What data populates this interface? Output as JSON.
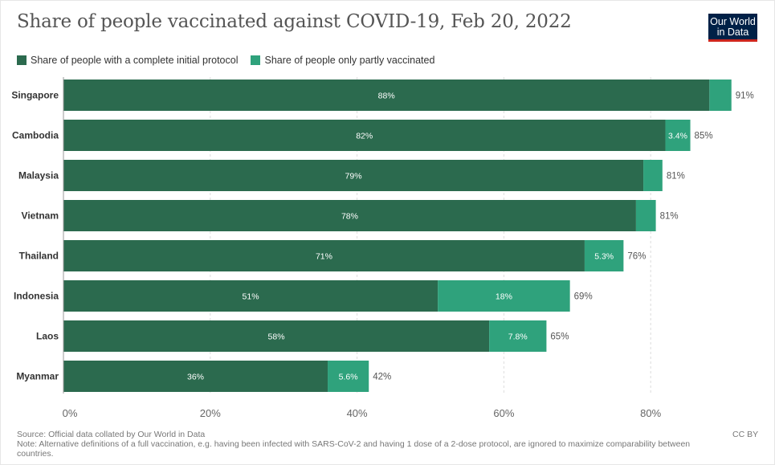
{
  "header": {
    "title": "Share of people vaccinated against COVID-19, Feb 20, 2022",
    "logo_line1": "Our World",
    "logo_line2": "in Data"
  },
  "colors": {
    "complete": "#2b6a4e",
    "partial": "#2fa27c",
    "gridline": "#dddddd",
    "label_text": "#555555"
  },
  "chart_data": {
    "type": "bar",
    "orientation": "horizontal",
    "stacked": true,
    "title": "Share of people vaccinated against COVID-19, Feb 20, 2022",
    "categories": [
      "Singapore",
      "Cambodia",
      "Malaysia",
      "Vietnam",
      "Thailand",
      "Indonesia",
      "Laos",
      "Myanmar"
    ],
    "series": [
      {
        "name": "Share of people with a complete initial protocol",
        "values": [
          88,
          82,
          79,
          78,
          71,
          51,
          58,
          36
        ],
        "labels": [
          "88%",
          "82%",
          "79%",
          "78%",
          "71%",
          "51%",
          "58%",
          "36%"
        ]
      },
      {
        "name": "Share of people only partly vaccinated",
        "values": [
          3,
          3.4,
          2.6,
          2.7,
          5.3,
          18,
          7.8,
          5.6
        ],
        "labels": [
          "",
          "3.4%",
          "",
          "",
          "5.3%",
          "18%",
          "7.8%",
          "5.6%"
        ]
      }
    ],
    "totals": [
      91,
      85,
      81,
      81,
      76,
      69,
      65,
      42
    ],
    "total_labels": [
      "91%",
      "85%",
      "81%",
      "81%",
      "76%",
      "69%",
      "65%",
      "42%"
    ],
    "xlim": [
      0,
      91
    ],
    "xticks": [
      0,
      20,
      40,
      60,
      80
    ],
    "xtick_labels": [
      "0%",
      "20%",
      "40%",
      "60%",
      "80%"
    ],
    "grid": "vertical-dashed",
    "legend_placement": "top-left"
  },
  "footer": {
    "source": "Source: Official data collated by Our World in Data",
    "note": "Note: Alternative definitions of a full vaccination, e.g. having been infected with SARS-CoV-2 and having 1 dose of a 2-dose protocol, are ignored to maximize comparability between countries.",
    "license": "CC BY"
  }
}
